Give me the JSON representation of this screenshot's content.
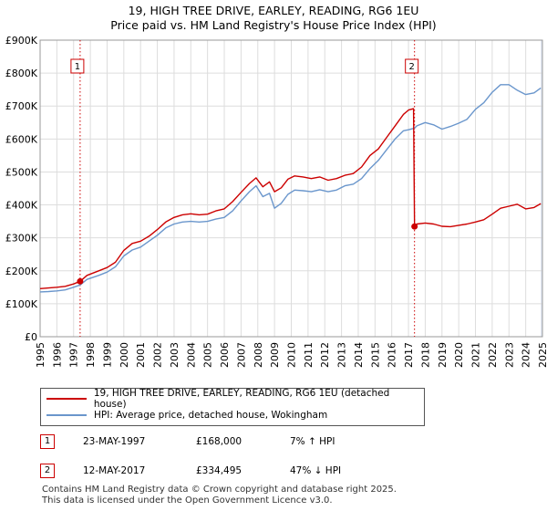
{
  "title": {
    "line1": "19, HIGH TREE DRIVE, EARLEY, READING, RG6 1EU",
    "line2": "Price paid vs. HM Land Registry's House Price Index (HPI)"
  },
  "colors": {
    "property": "#cc0000",
    "hpi": "#6a96cc",
    "marker_line": "#cc0000",
    "grid": "#dddddd",
    "shade": "#dfe6f3"
  },
  "legend": {
    "property_label": "19, HIGH TREE DRIVE, EARLEY, READING, RG6 1EU (detached house)",
    "hpi_label": "HPI: Average price, detached house, Wokingham"
  },
  "transactions": [
    {
      "num": "1",
      "date": "23-MAY-1997",
      "price": "£168,000",
      "hpi_change": "7% ↑ HPI"
    },
    {
      "num": "2",
      "date": "12-MAY-2017",
      "price": "£334,495",
      "hpi_change": "47% ↓ HPI"
    }
  ],
  "footer": {
    "line1": "Contains HM Land Registry data © Crown copyright and database right 2025.",
    "line2": "This data is licensed under the Open Government Licence v3.0."
  },
  "chart_data": {
    "type": "line",
    "title": "Price paid vs. HM Land Registry's House Price Index (HPI)",
    "xlabel": "",
    "ylabel": "",
    "xlim": [
      1995,
      2025
    ],
    "ylim": [
      0,
      900000
    ],
    "y_ticks": [
      0,
      100000,
      200000,
      300000,
      400000,
      500000,
      600000,
      700000,
      800000,
      900000
    ],
    "y_tick_labels": [
      "£0",
      "£100K",
      "£200K",
      "£300K",
      "£400K",
      "£500K",
      "£600K",
      "£700K",
      "£800K",
      "£900K"
    ],
    "x_ticks": [
      1995,
      1996,
      1997,
      1998,
      1999,
      2000,
      2001,
      2002,
      2003,
      2004,
      2005,
      2006,
      2007,
      2008,
      2009,
      2010,
      2011,
      2012,
      2013,
      2014,
      2015,
      2016,
      2017,
      2018,
      2019,
      2020,
      2021,
      2022,
      2023,
      2024,
      2025
    ],
    "grid": true,
    "legend_position": "bottom",
    "markers": [
      {
        "label": "1",
        "x": 1997.39,
        "y": 168000
      },
      {
        "label": "2",
        "x": 2017.36,
        "y": 334495
      }
    ],
    "series": [
      {
        "name": "19, HIGH TREE DRIVE, EARLEY, READING, RG6 1EU (detached house)",
        "x": [
          1995.0,
          1995.5,
          1996.0,
          1996.5,
          1997.0,
          1997.39,
          1997.8,
          1998.5,
          1999.0,
          1999.5,
          2000.0,
          2000.5,
          2001.0,
          2001.5,
          2002.0,
          2002.5,
          2003.0,
          2003.5,
          2004.0,
          2004.5,
          2005.0,
          2005.5,
          2006.0,
          2006.5,
          2007.0,
          2007.5,
          2007.9,
          2008.3,
          2008.7,
          2009.0,
          2009.4,
          2009.8,
          2010.2,
          2010.7,
          2011.2,
          2011.7,
          2012.2,
          2012.7,
          2013.2,
          2013.7,
          2014.2,
          2014.7,
          2015.2,
          2015.7,
          2016.2,
          2016.7,
          2017.0,
          2017.3,
          2017.36,
          2017.5,
          2018.0,
          2018.5,
          2019.0,
          2019.5,
          2020.0,
          2020.5,
          2021.0,
          2021.5,
          2022.0,
          2022.5,
          2023.0,
          2023.5,
          2024.0,
          2024.5,
          2024.9
        ],
        "values": [
          146000,
          148000,
          150000,
          153000,
          160000,
          168000,
          186000,
          200000,
          210000,
          226000,
          262000,
          283000,
          290000,
          305000,
          325000,
          348000,
          362000,
          370000,
          373000,
          370000,
          372000,
          382000,
          388000,
          410000,
          438000,
          465000,
          482000,
          455000,
          470000,
          440000,
          452000,
          478000,
          488000,
          485000,
          480000,
          485000,
          475000,
          480000,
          490000,
          495000,
          515000,
          550000,
          570000,
          605000,
          640000,
          675000,
          688000,
          692000,
          334495,
          342000,
          345000,
          342000,
          335000,
          334000,
          338000,
          342000,
          348000,
          355000,
          372000,
          390000,
          396000,
          402000,
          388000,
          392000,
          404000
        ]
      },
      {
        "name": "HPI: Average price, detached house, Wokingham",
        "x": [
          1995.0,
          1995.5,
          1996.0,
          1996.5,
          1997.0,
          1997.39,
          1997.8,
          1998.5,
          1999.0,
          1999.5,
          2000.0,
          2000.5,
          2001.0,
          2001.5,
          2002.0,
          2002.5,
          2003.0,
          2003.5,
          2004.0,
          2004.5,
          2005.0,
          2005.5,
          2006.0,
          2006.5,
          2007.0,
          2007.5,
          2007.9,
          2008.3,
          2008.7,
          2009.0,
          2009.4,
          2009.8,
          2010.2,
          2010.7,
          2011.2,
          2011.7,
          2012.2,
          2012.7,
          2013.2,
          2013.7,
          2014.2,
          2014.7,
          2015.2,
          2015.7,
          2016.2,
          2016.7,
          2017.0,
          2017.36,
          2017.5,
          2018.0,
          2018.5,
          2019.0,
          2019.5,
          2020.0,
          2020.5,
          2021.0,
          2021.5,
          2022.0,
          2022.5,
          2023.0,
          2023.5,
          2024.0,
          2024.5,
          2024.9
        ],
        "values": [
          136000,
          137000,
          139000,
          142000,
          150000,
          157000,
          174000,
          186000,
          196000,
          212000,
          245000,
          263000,
          272000,
          290000,
          308000,
          330000,
          342000,
          348000,
          350000,
          348000,
          350000,
          357000,
          362000,
          382000,
          412000,
          440000,
          458000,
          425000,
          435000,
          390000,
          405000,
          432000,
          445000,
          443000,
          440000,
          446000,
          440000,
          445000,
          458000,
          463000,
          480000,
          510000,
          535000,
          568000,
          600000,
          625000,
          628000,
          633000,
          640000,
          650000,
          643000,
          630000,
          638000,
          648000,
          660000,
          690000,
          710000,
          742000,
          765000,
          765000,
          748000,
          735000,
          740000,
          755000
        ]
      }
    ]
  }
}
